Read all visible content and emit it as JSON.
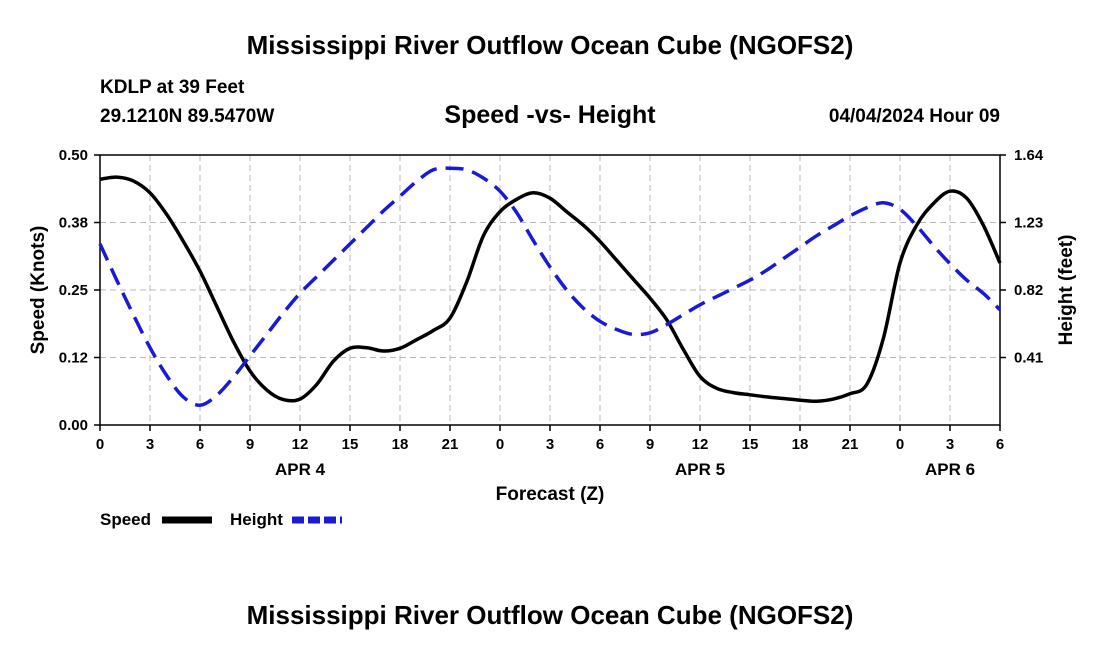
{
  "header": {
    "title": "Mississippi River Outflow Ocean Cube (NGOFS2)",
    "station": "KDLP at 39 Feet",
    "coords": "29.1210N  89.5470W",
    "subtitle": "Speed -vs- Height",
    "datetime": "04/04/2024 Hour 09"
  },
  "footer": {
    "title": "Mississippi River Outflow Ocean Cube (NGOFS2)"
  },
  "chart_data": {
    "type": "line",
    "title": "Speed -vs- Height",
    "xlabel": "Forecast (Z)",
    "ylabel": "Speed (Knots)",
    "y2label": "Height (feet)",
    "x_unit": "hours since APR 4 00Z",
    "xlim": [
      0,
      54
    ],
    "ylim": [
      0,
      0.5
    ],
    "y2lim": [
      0,
      1.64
    ],
    "x_ticks": [
      0,
      3,
      6,
      9,
      12,
      15,
      18,
      21,
      24,
      27,
      30,
      33,
      36,
      39,
      42,
      45,
      48,
      51,
      54
    ],
    "x_tick_labels": [
      "0",
      "3",
      "6",
      "9",
      "12",
      "15",
      "18",
      "21",
      "0",
      "3",
      "6",
      "9",
      "12",
      "15",
      "18",
      "21",
      "0",
      "3",
      "6"
    ],
    "y_ticks": [
      0,
      0.125,
      0.25,
      0.375,
      0.5
    ],
    "y_tick_labels": [
      "0.00",
      "0.12",
      "0.25",
      "0.38",
      "0.50"
    ],
    "y2_ticks": [
      0.41,
      0.82,
      1.23,
      1.64
    ],
    "y2_tick_labels": [
      "0.41",
      "0.82",
      "1.23",
      "1.64"
    ],
    "date_labels": [
      {
        "x": 12,
        "text": "APR 4"
      },
      {
        "x": 36,
        "text": "APR 5"
      },
      {
        "x": 51,
        "text": "APR 6"
      }
    ],
    "grid": true,
    "series": [
      {
        "name": "Speed",
        "axis": "left",
        "color": "#000000",
        "dash": "solid",
        "x": [
          0,
          1,
          2,
          3,
          4,
          5,
          6,
          7,
          8,
          9,
          10,
          11,
          12,
          13,
          14,
          15,
          16,
          17,
          18,
          19,
          20,
          21,
          22,
          23,
          24,
          25,
          26,
          27,
          28,
          29,
          30,
          31,
          32,
          33,
          34,
          35,
          36,
          37,
          38,
          39,
          40,
          41,
          42,
          43,
          44,
          45,
          46,
          47,
          48,
          49,
          50,
          51,
          52,
          53,
          54
        ],
        "values": [
          0.455,
          0.459,
          0.452,
          0.43,
          0.39,
          0.34,
          0.285,
          0.22,
          0.155,
          0.1,
          0.065,
          0.047,
          0.048,
          0.075,
          0.118,
          0.142,
          0.143,
          0.137,
          0.142,
          0.158,
          0.175,
          0.198,
          0.265,
          0.35,
          0.395,
          0.418,
          0.43,
          0.42,
          0.395,
          0.37,
          0.34,
          0.305,
          0.27,
          0.235,
          0.195,
          0.14,
          0.09,
          0.068,
          0.06,
          0.056,
          0.052,
          0.049,
          0.046,
          0.044,
          0.048,
          0.058,
          0.075,
          0.16,
          0.3,
          0.37,
          0.41,
          0.433,
          0.42,
          0.37,
          0.3
        ]
      },
      {
        "name": "Height",
        "axis": "right",
        "color": "#1a1ad4",
        "dash": "dashed",
        "x": [
          0,
          1,
          2,
          3,
          4,
          5,
          6,
          7,
          8,
          9,
          10,
          11,
          12,
          13,
          14,
          15,
          16,
          17,
          18,
          19,
          20,
          21,
          22,
          23,
          24,
          25,
          26,
          27,
          28,
          29,
          30,
          31,
          32,
          33,
          34,
          35,
          36,
          37,
          38,
          39,
          40,
          41,
          42,
          43,
          44,
          45,
          46,
          47,
          48,
          49,
          50,
          51,
          52,
          53,
          54
        ],
        "values": [
          1.1,
          0.88,
          0.67,
          0.47,
          0.3,
          0.17,
          0.12,
          0.18,
          0.29,
          0.42,
          0.55,
          0.68,
          0.8,
          0.9,
          1.0,
          1.1,
          1.2,
          1.3,
          1.39,
          1.48,
          1.55,
          1.56,
          1.55,
          1.5,
          1.42,
          1.29,
          1.12,
          0.96,
          0.82,
          0.71,
          0.63,
          0.58,
          0.55,
          0.56,
          0.61,
          0.67,
          0.73,
          0.78,
          0.83,
          0.88,
          0.94,
          1.01,
          1.08,
          1.15,
          1.21,
          1.27,
          1.32,
          1.35,
          1.31,
          1.21,
          1.09,
          0.98,
          0.88,
          0.8,
          0.7
        ]
      }
    ]
  }
}
